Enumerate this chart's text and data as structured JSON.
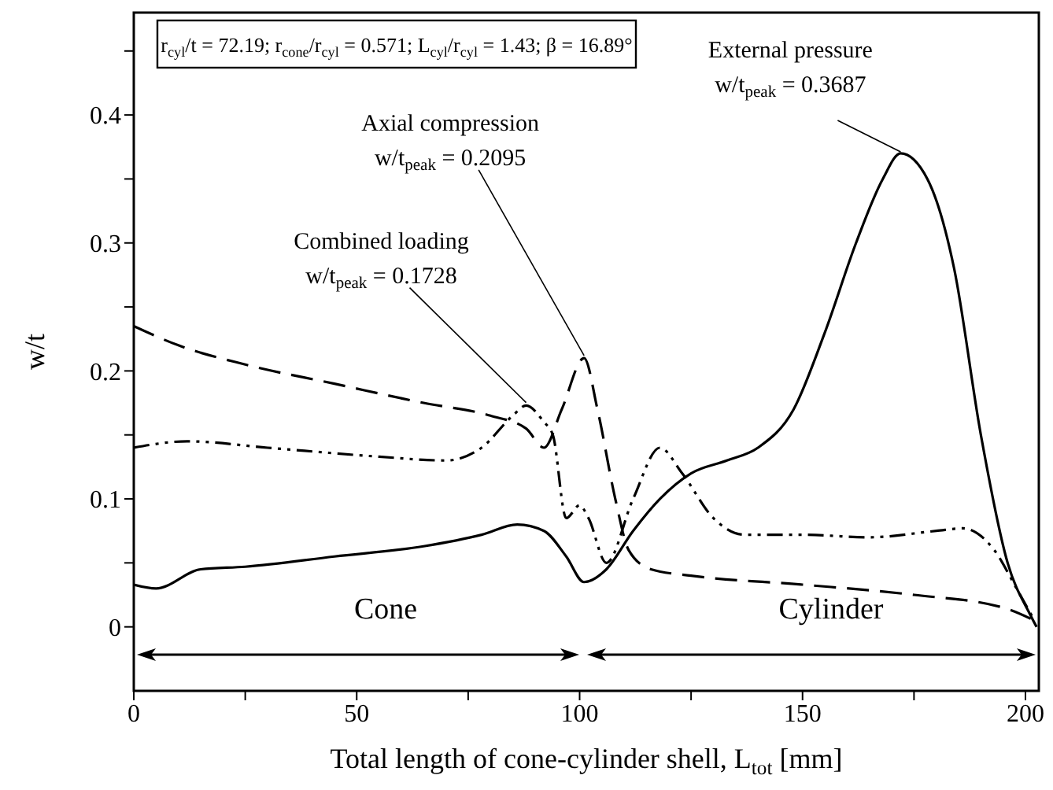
{
  "chart_data": {
    "type": "line",
    "xlabel": "Total length of cone-cylinder shell, L$_{tot}$ [mm]",
    "ylabel": "w/t",
    "xlim": [
      0,
      203
    ],
    "ylim": [
      -0.05,
      0.48
    ],
    "xticks": [
      0,
      {
        "value": 25,
        "label": null
      },
      50,
      {
        "value": 75,
        "label": null
      },
      100,
      {
        "value": 125,
        "label": null
      },
      150,
      {
        "value": 175,
        "label": null
      },
      200
    ],
    "yticks": [
      0,
      {
        "value": 0.05,
        "label": null
      },
      0.1,
      {
        "value": 0.15,
        "label": null
      },
      0.2,
      {
        "value": 0.25,
        "label": null
      },
      0.3,
      {
        "value": 0.35,
        "label": null
      },
      0.4,
      {
        "value": 0.45,
        "label": null
      }
    ],
    "marker": "none",
    "series": [
      {
        "color": "#000000",
        "line_style": "solid",
        "x": [
          0,
          5,
          15,
          25,
          45,
          65,
          78,
          86,
          92,
          97,
          101,
          106,
          112,
          118,
          125,
          133,
          140,
          148,
          155,
          162,
          168,
          172,
          178,
          184,
          190,
          196,
          201,
          202.5
        ],
        "values": [
          0.033,
          0.03,
          0.045,
          0.047,
          0.055,
          0.063,
          0.072,
          0.08,
          0.075,
          0.055,
          0.035,
          0.045,
          0.075,
          0.1,
          0.12,
          0.13,
          0.14,
          0.17,
          0.23,
          0.3,
          0.35,
          0.37,
          0.35,
          0.28,
          0.15,
          0.05,
          0.01,
          0
        ]
      },
      {
        "color": "#000000",
        "line_style": "dashed",
        "x": [
          0,
          10,
          25,
          45,
          65,
          80,
          88,
          92,
          96,
          101,
          104,
          108,
          111,
          116,
          125,
          150,
          175,
          195,
          202
        ],
        "values": [
          0.235,
          0.22,
          0.205,
          0.19,
          0.175,
          0.165,
          0.155,
          0.14,
          0.17,
          0.21,
          0.17,
          0.1,
          0.06,
          0.045,
          0.04,
          0.033,
          0.025,
          0.015,
          0.005
        ]
      },
      {
        "color": "#000000",
        "line_style": "dashdotdot",
        "x": [
          0,
          12,
          30,
          55,
          70,
          78,
          85,
          88,
          92,
          94,
          97,
          100,
          102,
          106,
          112,
          118,
          123,
          130,
          137,
          150,
          165,
          180,
          186,
          193,
          198,
          202
        ],
        "values": [
          0.14,
          0.145,
          0.14,
          0.133,
          0.13,
          0.14,
          0.165,
          0.173,
          0.16,
          0.15,
          0.085,
          0.095,
          0.085,
          0.05,
          0.1,
          0.14,
          0.12,
          0.085,
          0.072,
          0.072,
          0.07,
          0.075,
          0.077,
          0.06,
          0.03,
          0.005
        ]
      }
    ],
    "annotations": [
      "r$_{cyl}$/t = 72.19; r$_{cone}$/r$_{cyl}$ = 0.571; L$_{cyl}$/r$_{cyl}$ = 1.43; β = 16.89°",
      {
        "text": "External pressure\nw/t$_{peak}$ = 0.3687",
        "x": 172,
        "y": 0.3687
      },
      {
        "text": "Axial compression\nw/t$_{peak}$ = 0.2095",
        "x": 101,
        "y": 0.2095
      },
      {
        "text": "Combined loading\nw/t$_{peak}$ = 0.1728",
        "x": 88,
        "y": 0.1728
      },
      "Cone",
      "Cylinder"
    ]
  }
}
